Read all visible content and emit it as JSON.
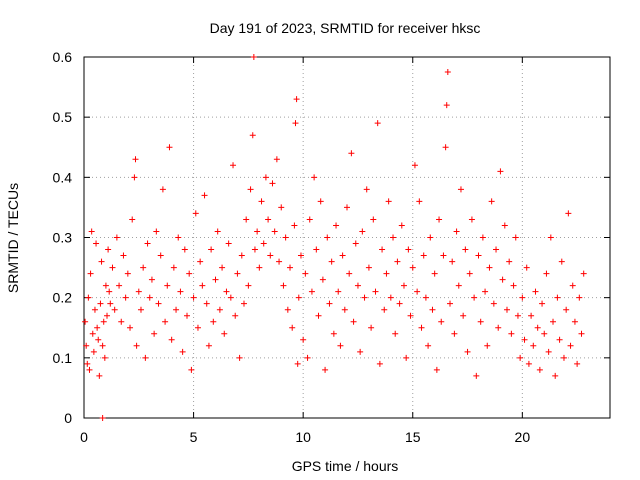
{
  "chart_data": {
    "type": "scatter",
    "title": "Day 191 of 2023, SRMTID for receiver hksc",
    "xlabel": "GPS time / hours",
    "ylabel": "SRMTID / TECUs",
    "xlim": [
      0,
      24
    ],
    "ylim": [
      0,
      0.6
    ],
    "x_ticks": [
      0,
      5,
      10,
      15,
      20
    ],
    "x_tick_labels": [
      "0",
      "5",
      "10",
      "15",
      "20"
    ],
    "y_ticks": [
      0,
      0.1,
      0.2,
      0.3,
      0.4,
      0.5,
      0.6
    ],
    "y_tick_labels": [
      "0",
      "0.1",
      "0.2",
      "0.3",
      "0.4",
      "0.5",
      "0.6"
    ],
    "grid": true,
    "marker": "+",
    "color": "#ff0000",
    "series": [
      {
        "name": "SRMTID",
        "points": [
          [
            0.05,
            0.16
          ],
          [
            0.1,
            0.12
          ],
          [
            0.15,
            0.09
          ],
          [
            0.2,
            0.2
          ],
          [
            0.25,
            0.08
          ],
          [
            0.3,
            0.24
          ],
          [
            0.35,
            0.31
          ],
          [
            0.4,
            0.14
          ],
          [
            0.45,
            0.11
          ],
          [
            0.5,
            0.18
          ],
          [
            0.55,
            0.29
          ],
          [
            0.6,
            0.15
          ],
          [
            0.65,
            0.13
          ],
          [
            0.7,
            0.07
          ],
          [
            0.75,
            0.19
          ],
          [
            0.8,
            0.26
          ],
          [
            0.85,
            0.12
          ],
          [
            0.9,
            0.16
          ],
          [
            0.95,
            0.1
          ],
          [
            1.0,
            0.22
          ],
          [
            1.05,
            0.17
          ],
          [
            1.1,
            0.28
          ],
          [
            1.15,
            0.21
          ],
          [
            1.2,
            0.19
          ],
          [
            1.3,
            0.25
          ],
          [
            1.4,
            0.18
          ],
          [
            1.5,
            0.3
          ],
          [
            1.6,
            0.22
          ],
          [
            1.7,
            0.16
          ],
          [
            1.8,
            0.27
          ],
          [
            1.9,
            0.2
          ],
          [
            2.0,
            0.24
          ],
          [
            2.1,
            0.15
          ],
          [
            2.2,
            0.33
          ],
          [
            2.3,
            0.4
          ],
          [
            2.35,
            0.43
          ],
          [
            2.4,
            0.12
          ],
          [
            2.5,
            0.21
          ],
          [
            2.6,
            0.18
          ],
          [
            2.7,
            0.25
          ],
          [
            2.8,
            0.1
          ],
          [
            2.9,
            0.29
          ],
          [
            3.0,
            0.2
          ],
          [
            3.1,
            0.23
          ],
          [
            3.2,
            0.14
          ],
          [
            3.3,
            0.31
          ],
          [
            3.4,
            0.19
          ],
          [
            3.5,
            0.27
          ],
          [
            3.6,
            0.38
          ],
          [
            3.7,
            0.16
          ],
          [
            3.8,
            0.22
          ],
          [
            3.9,
            0.45
          ],
          [
            4.0,
            0.13
          ],
          [
            4.1,
            0.25
          ],
          [
            4.2,
            0.18
          ],
          [
            4.3,
            0.3
          ],
          [
            4.4,
            0.21
          ],
          [
            4.5,
            0.11
          ],
          [
            4.6,
            0.28
          ],
          [
            4.7,
            0.17
          ],
          [
            4.8,
            0.24
          ],
          [
            4.9,
            0.08
          ],
          [
            5.0,
            0.2
          ],
          [
            5.1,
            0.34
          ],
          [
            5.2,
            0.15
          ],
          [
            5.3,
            0.26
          ],
          [
            5.4,
            0.22
          ],
          [
            5.5,
            0.37
          ],
          [
            5.6,
            0.19
          ],
          [
            5.7,
            0.12
          ],
          [
            5.8,
            0.28
          ],
          [
            5.9,
            0.16
          ],
          [
            6.0,
            0.23
          ],
          [
            6.1,
            0.31
          ],
          [
            6.2,
            0.18
          ],
          [
            6.3,
            0.25
          ],
          [
            6.4,
            0.14
          ],
          [
            6.5,
            0.21
          ],
          [
            6.6,
            0.29
          ],
          [
            6.7,
            0.2
          ],
          [
            6.8,
            0.42
          ],
          [
            6.9,
            0.17
          ],
          [
            7.0,
            0.24
          ],
          [
            7.1,
            0.1
          ],
          [
            7.2,
            0.27
          ],
          [
            7.3,
            0.19
          ],
          [
            7.4,
            0.33
          ],
          [
            7.5,
            0.22
          ],
          [
            7.6,
            0.38
          ],
          [
            7.7,
            0.47
          ],
          [
            7.75,
            0.6
          ],
          [
            7.8,
            0.28
          ],
          [
            7.9,
            0.31
          ],
          [
            8.0,
            0.25
          ],
          [
            8.1,
            0.36
          ],
          [
            8.2,
            0.29
          ],
          [
            8.3,
            0.4
          ],
          [
            8.4,
            0.33
          ],
          [
            8.5,
            0.27
          ],
          [
            8.6,
            0.39
          ],
          [
            8.7,
            0.31
          ],
          [
            8.8,
            0.43
          ],
          [
            8.9,
            0.26
          ],
          [
            9.0,
            0.35
          ],
          [
            9.1,
            0.22
          ],
          [
            9.2,
            0.3
          ],
          [
            9.3,
            0.18
          ],
          [
            9.4,
            0.25
          ],
          [
            9.5,
            0.15
          ],
          [
            9.6,
            0.32
          ],
          [
            9.65,
            0.49
          ],
          [
            9.7,
            0.53
          ],
          [
            9.75,
            0.09
          ],
          [
            9.8,
            0.2
          ],
          [
            9.9,
            0.27
          ],
          [
            10.0,
            0.13
          ],
          [
            10.1,
            0.24
          ],
          [
            10.2,
            0.1
          ],
          [
            10.3,
            0.33
          ],
          [
            10.4,
            0.21
          ],
          [
            10.5,
            0.4
          ],
          [
            10.6,
            0.28
          ],
          [
            10.7,
            0.17
          ],
          [
            10.8,
            0.36
          ],
          [
            10.9,
            0.23
          ],
          [
            11.0,
            0.08
          ],
          [
            11.1,
            0.3
          ],
          [
            11.2,
            0.19
          ],
          [
            11.3,
            0.26
          ],
          [
            11.4,
            0.14
          ],
          [
            11.5,
            0.32
          ],
          [
            11.6,
            0.21
          ],
          [
            11.7,
            0.12
          ],
          [
            11.8,
            0.27
          ],
          [
            11.9,
            0.18
          ],
          [
            12.0,
            0.35
          ],
          [
            12.1,
            0.24
          ],
          [
            12.2,
            0.44
          ],
          [
            12.3,
            0.16
          ],
          [
            12.4,
            0.29
          ],
          [
            12.5,
            0.22
          ],
          [
            12.6,
            0.11
          ],
          [
            12.7,
            0.31
          ],
          [
            12.8,
            0.2
          ],
          [
            12.9,
            0.38
          ],
          [
            13.0,
            0.25
          ],
          [
            13.1,
            0.15
          ],
          [
            13.2,
            0.33
          ],
          [
            13.3,
            0.21
          ],
          [
            13.4,
            0.49
          ],
          [
            13.5,
            0.09
          ],
          [
            13.6,
            0.28
          ],
          [
            13.7,
            0.18
          ],
          [
            13.8,
            0.24
          ],
          [
            13.9,
            0.36
          ],
          [
            14.0,
            0.2
          ],
          [
            14.1,
            0.3
          ],
          [
            14.2,
            0.14
          ],
          [
            14.3,
            0.26
          ],
          [
            14.4,
            0.19
          ],
          [
            14.5,
            0.32
          ],
          [
            14.6,
            0.22
          ],
          [
            14.7,
            0.1
          ],
          [
            14.8,
            0.28
          ],
          [
            14.9,
            0.17
          ],
          [
            15.0,
            0.25
          ],
          [
            15.1,
            0.42
          ],
          [
            15.2,
            0.21
          ],
          [
            15.3,
            0.36
          ],
          [
            15.4,
            0.15
          ],
          [
            15.5,
            0.27
          ],
          [
            15.6,
            0.2
          ],
          [
            15.7,
            0.12
          ],
          [
            15.8,
            0.3
          ],
          [
            15.9,
            0.18
          ],
          [
            16.0,
            0.24
          ],
          [
            16.1,
            0.08
          ],
          [
            16.2,
            0.33
          ],
          [
            16.3,
            0.16
          ],
          [
            16.4,
            0.27
          ],
          [
            16.5,
            0.45
          ],
          [
            16.55,
            0.52
          ],
          [
            16.6,
            0.575
          ],
          [
            16.7,
            0.19
          ],
          [
            16.8,
            0.26
          ],
          [
            16.9,
            0.14
          ],
          [
            17.0,
            0.31
          ],
          [
            17.1,
            0.22
          ],
          [
            17.2,
            0.38
          ],
          [
            17.3,
            0.17
          ],
          [
            17.4,
            0.28
          ],
          [
            17.5,
            0.11
          ],
          [
            17.6,
            0.24
          ],
          [
            17.7,
            0.33
          ],
          [
            17.8,
            0.2
          ],
          [
            17.9,
            0.07
          ],
          [
            18.0,
            0.27
          ],
          [
            18.1,
            0.16
          ],
          [
            18.2,
            0.3
          ],
          [
            18.3,
            0.21
          ],
          [
            18.4,
            0.12
          ],
          [
            18.5,
            0.25
          ],
          [
            18.6,
            0.36
          ],
          [
            18.7,
            0.19
          ],
          [
            18.8,
            0.28
          ],
          [
            18.9,
            0.15
          ],
          [
            19.0,
            0.41
          ],
          [
            19.1,
            0.23
          ],
          [
            19.2,
            0.32
          ],
          [
            19.3,
            0.18
          ],
          [
            19.4,
            0.26
          ],
          [
            19.5,
            0.14
          ],
          [
            19.6,
            0.22
          ],
          [
            19.7,
            0.3
          ],
          [
            19.8,
            0.17
          ],
          [
            19.9,
            0.1
          ],
          [
            20.0,
            0.2
          ],
          [
            20.1,
            0.13
          ],
          [
            20.2,
            0.25
          ],
          [
            20.3,
            0.09
          ],
          [
            20.4,
            0.17
          ],
          [
            20.5,
            0.12
          ],
          [
            20.6,
            0.21
          ],
          [
            20.7,
            0.15
          ],
          [
            20.8,
            0.08
          ],
          [
            20.9,
            0.19
          ],
          [
            21.0,
            0.14
          ],
          [
            21.1,
            0.24
          ],
          [
            21.2,
            0.11
          ],
          [
            21.3,
            0.3
          ],
          [
            21.4,
            0.16
          ],
          [
            21.5,
            0.07
          ],
          [
            21.6,
            0.2
          ],
          [
            21.7,
            0.13
          ],
          [
            21.8,
            0.26
          ],
          [
            21.9,
            0.1
          ],
          [
            22.0,
            0.18
          ],
          [
            22.1,
            0.34
          ],
          [
            22.2,
            0.12
          ],
          [
            22.3,
            0.22
          ],
          [
            22.4,
            0.16
          ],
          [
            22.5,
            0.09
          ],
          [
            22.6,
            0.2
          ],
          [
            22.7,
            0.14
          ],
          [
            22.8,
            0.24
          ],
          [
            0.85,
            0.0
          ]
        ]
      }
    ]
  }
}
